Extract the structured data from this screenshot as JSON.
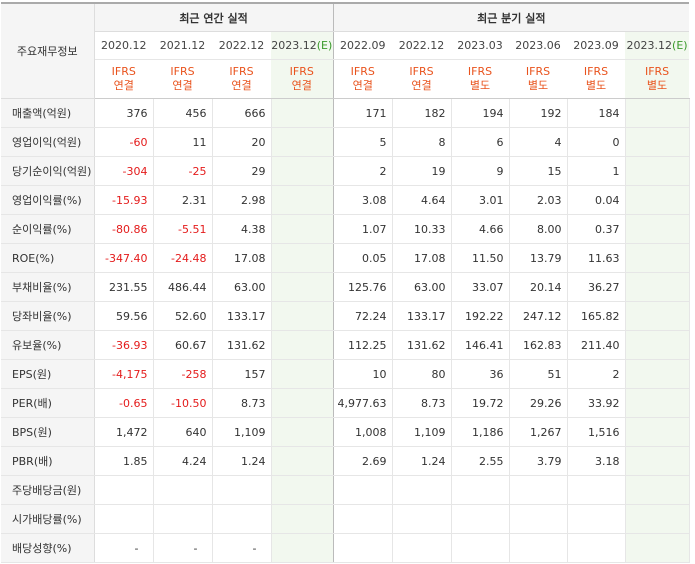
{
  "table": {
    "row_header": "주요재무정보",
    "annual_title": "최근 연간 실적",
    "quarterly_title": "최근 분기 실적",
    "estimate_marker": "(E)",
    "annual_periods": [
      "2020.12",
      "2021.12",
      "2022.12",
      "2023.12"
    ],
    "quarterly_periods": [
      "2022.09",
      "2022.12",
      "2023.03",
      "2023.06",
      "2023.09",
      "2023.12"
    ],
    "annual_ifrs": [
      [
        "IFRS",
        "연결"
      ],
      [
        "IFRS",
        "연결"
      ],
      [
        "IFRS",
        "연결"
      ],
      [
        "IFRS",
        "연결"
      ]
    ],
    "quarterly_ifrs": [
      [
        "IFRS",
        "연결"
      ],
      [
        "IFRS",
        "연결"
      ],
      [
        "IFRS",
        "별도"
      ],
      [
        "IFRS",
        "별도"
      ],
      [
        "IFRS",
        "별도"
      ],
      [
        "IFRS",
        "별도"
      ]
    ],
    "rows": [
      {
        "label": "매출액(억원)",
        "annual": [
          "376",
          "456",
          "666",
          ""
        ],
        "quarterly": [
          "171",
          "182",
          "194",
          "192",
          "184",
          ""
        ]
      },
      {
        "label": "영업이익(억원)",
        "annual": [
          "-60",
          "11",
          "20",
          ""
        ],
        "quarterly": [
          "5",
          "8",
          "6",
          "4",
          "0",
          ""
        ]
      },
      {
        "label": "당기순이익(억원)",
        "annual": [
          "-304",
          "-25",
          "29",
          ""
        ],
        "quarterly": [
          "2",
          "19",
          "9",
          "15",
          "1",
          ""
        ]
      },
      {
        "label": "영업이익률(%)",
        "annual": [
          "-15.93",
          "2.31",
          "2.98",
          ""
        ],
        "quarterly": [
          "3.08",
          "4.64",
          "3.01",
          "2.03",
          "0.04",
          ""
        ]
      },
      {
        "label": "순이익률(%)",
        "annual": [
          "-80.86",
          "-5.51",
          "4.38",
          ""
        ],
        "quarterly": [
          "1.07",
          "10.33",
          "4.66",
          "8.00",
          "0.37",
          ""
        ]
      },
      {
        "label": "ROE(%)",
        "annual": [
          "-347.40",
          "-24.48",
          "17.08",
          ""
        ],
        "quarterly": [
          "0.05",
          "17.08",
          "11.50",
          "13.79",
          "11.63",
          ""
        ]
      },
      {
        "label": "부채비율(%)",
        "annual": [
          "231.55",
          "486.44",
          "63.00",
          ""
        ],
        "quarterly": [
          "125.76",
          "63.00",
          "33.07",
          "20.14",
          "36.27",
          ""
        ]
      },
      {
        "label": "당좌비율(%)",
        "annual": [
          "59.56",
          "52.60",
          "133.17",
          ""
        ],
        "quarterly": [
          "72.24",
          "133.17",
          "192.22",
          "247.12",
          "165.82",
          ""
        ]
      },
      {
        "label": "유보율(%)",
        "annual": [
          "-36.93",
          "60.67",
          "131.62",
          ""
        ],
        "quarterly": [
          "112.25",
          "131.62",
          "146.41",
          "162.83",
          "211.40",
          ""
        ]
      },
      {
        "label": "EPS(원)",
        "annual": [
          "-4,175",
          "-258",
          "157",
          ""
        ],
        "quarterly": [
          "10",
          "80",
          "36",
          "51",
          "2",
          ""
        ]
      },
      {
        "label": "PER(배)",
        "annual": [
          "-0.65",
          "-10.50",
          "8.73",
          ""
        ],
        "quarterly": [
          "4,977.63",
          "8.73",
          "19.72",
          "29.26",
          "33.92",
          ""
        ]
      },
      {
        "label": "BPS(원)",
        "annual": [
          "1,472",
          "640",
          "1,109",
          ""
        ],
        "quarterly": [
          "1,008",
          "1,109",
          "1,186",
          "1,267",
          "1,516",
          ""
        ]
      },
      {
        "label": "PBR(배)",
        "annual": [
          "1.85",
          "4.24",
          "1.24",
          ""
        ],
        "quarterly": [
          "2.69",
          "1.24",
          "2.55",
          "3.79",
          "3.18",
          ""
        ]
      },
      {
        "label": "주당배당금(원)",
        "annual": [
          "",
          "",
          "",
          ""
        ],
        "quarterly": [
          "",
          "",
          "",
          "",
          "",
          ""
        ]
      },
      {
        "label": "시가배당률(%)",
        "annual": [
          "",
          "",
          "",
          ""
        ],
        "quarterly": [
          "",
          "",
          "",
          "",
          "",
          ""
        ]
      },
      {
        "label": "배당성향(%)",
        "annual": [
          "-",
          "-",
          "-",
          ""
        ],
        "quarterly": [
          "",
          "",
          "",
          "",
          "",
          ""
        ]
      }
    ]
  },
  "colors": {
    "negative": "#e41b1b",
    "ifrs_label": "#e9531d",
    "estimate": "#3a9a2b",
    "estimate_bg": "#f2f8ef",
    "header_bg": "#f5f5f5"
  }
}
